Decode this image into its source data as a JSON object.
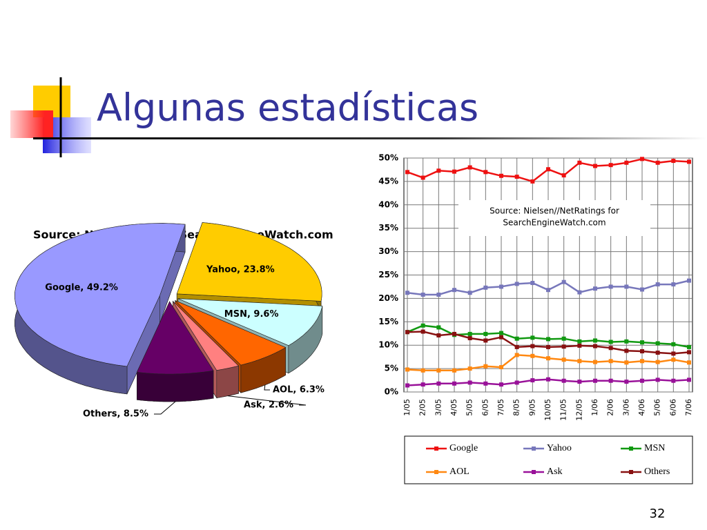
{
  "title": "Algunas estadísticas",
  "page_number": "32",
  "chart_data": [
    {
      "type": "pie",
      "title": "Source: NetRatings for SearchEngineWatch.com",
      "values": [
        49.2,
        23.8,
        9.6,
        6.3,
        2.6,
        8.5
      ],
      "value_labels": [
        "Google, 49.2%",
        "Yahoo, 23.8%",
        "MSN, 9.6%",
        "AOL, 6.3%",
        "Ask, 2.6%",
        "Others, 8.5%"
      ],
      "colors": [
        "#9999ff",
        "#ffcc00",
        "#ccffff",
        "#ff6600",
        "#ff8080",
        "#660066"
      ]
    },
    {
      "type": "line",
      "annotation": [
        "Source: Nielsen//NetRatings for",
        "SearchEngineWatch.com"
      ],
      "categories": [
        "1/05",
        "2/05",
        "3/05",
        "4/05",
        "5/05",
        "6/05",
        "7/05",
        "8/05",
        "9/05",
        "10/05",
        "11/05",
        "12/05",
        "1/06",
        "2/06",
        "3/06",
        "4/06",
        "5/06",
        "6/06",
        "7/06"
      ],
      "ylim": [
        0,
        50
      ],
      "yticks": [
        {
          "value": 0,
          "label": "0%"
        },
        {
          "value": 5,
          "label": "5%"
        },
        {
          "value": 10,
          "label": "10%"
        },
        {
          "value": 15,
          "label": "15%"
        },
        {
          "value": 20,
          "label": "20%"
        },
        {
          "value": 25,
          "label": "25%"
        },
        {
          "value": 30,
          "label": "30%"
        },
        {
          "value": 35,
          "label": "35%"
        },
        {
          "value": 40,
          "label": "40%"
        },
        {
          "value": 45,
          "label": "45%"
        },
        {
          "value": 50,
          "label": "50%"
        }
      ],
      "grid": true,
      "legend": "bottom",
      "series": [
        {
          "name": "Google",
          "color": "#ee1111",
          "values": [
            47,
            45.8,
            47.3,
            47.1,
            48,
            47,
            46.2,
            46,
            45,
            47.6,
            46.3,
            49,
            48.3,
            48.5,
            49,
            49.8,
            49,
            49.4,
            49.2
          ]
        },
        {
          "name": "Yahoo",
          "color": "#7777bb",
          "values": [
            21.2,
            20.8,
            20.8,
            21.8,
            21.2,
            22.3,
            22.5,
            23.1,
            23.3,
            21.8,
            23.5,
            21.3,
            22.1,
            22.5,
            22.5,
            21.9,
            23,
            23,
            23.8
          ]
        },
        {
          "name": "MSN",
          "color": "#119911",
          "values": [
            12.8,
            14.2,
            13.8,
            12.2,
            12.4,
            12.4,
            12.6,
            11.4,
            11.6,
            11.3,
            11.4,
            10.8,
            11,
            10.7,
            10.8,
            10.6,
            10.4,
            10.2,
            9.6
          ]
        },
        {
          "name": "AOL",
          "color": "#ff8811",
          "values": [
            4.8,
            4.6,
            4.6,
            4.6,
            5,
            5.5,
            5.3,
            7.9,
            7.7,
            7.2,
            6.9,
            6.6,
            6.4,
            6.6,
            6.3,
            6.6,
            6.4,
            6.9,
            6.3
          ]
        },
        {
          "name": "Ask",
          "color": "#991199",
          "values": [
            1.4,
            1.6,
            1.8,
            1.8,
            2,
            1.8,
            1.6,
            2,
            2.5,
            2.7,
            2.4,
            2.2,
            2.4,
            2.4,
            2.2,
            2.4,
            2.6,
            2.4,
            2.6
          ]
        },
        {
          "name": "Others",
          "color": "#881111",
          "values": [
            12.8,
            12.9,
            12.1,
            12.4,
            11.5,
            11,
            11.7,
            9.6,
            9.8,
            9.6,
            9.7,
            9.9,
            9.8,
            9.4,
            8.8,
            8.7,
            8.4,
            8.2,
            8.5
          ]
        }
      ]
    }
  ]
}
